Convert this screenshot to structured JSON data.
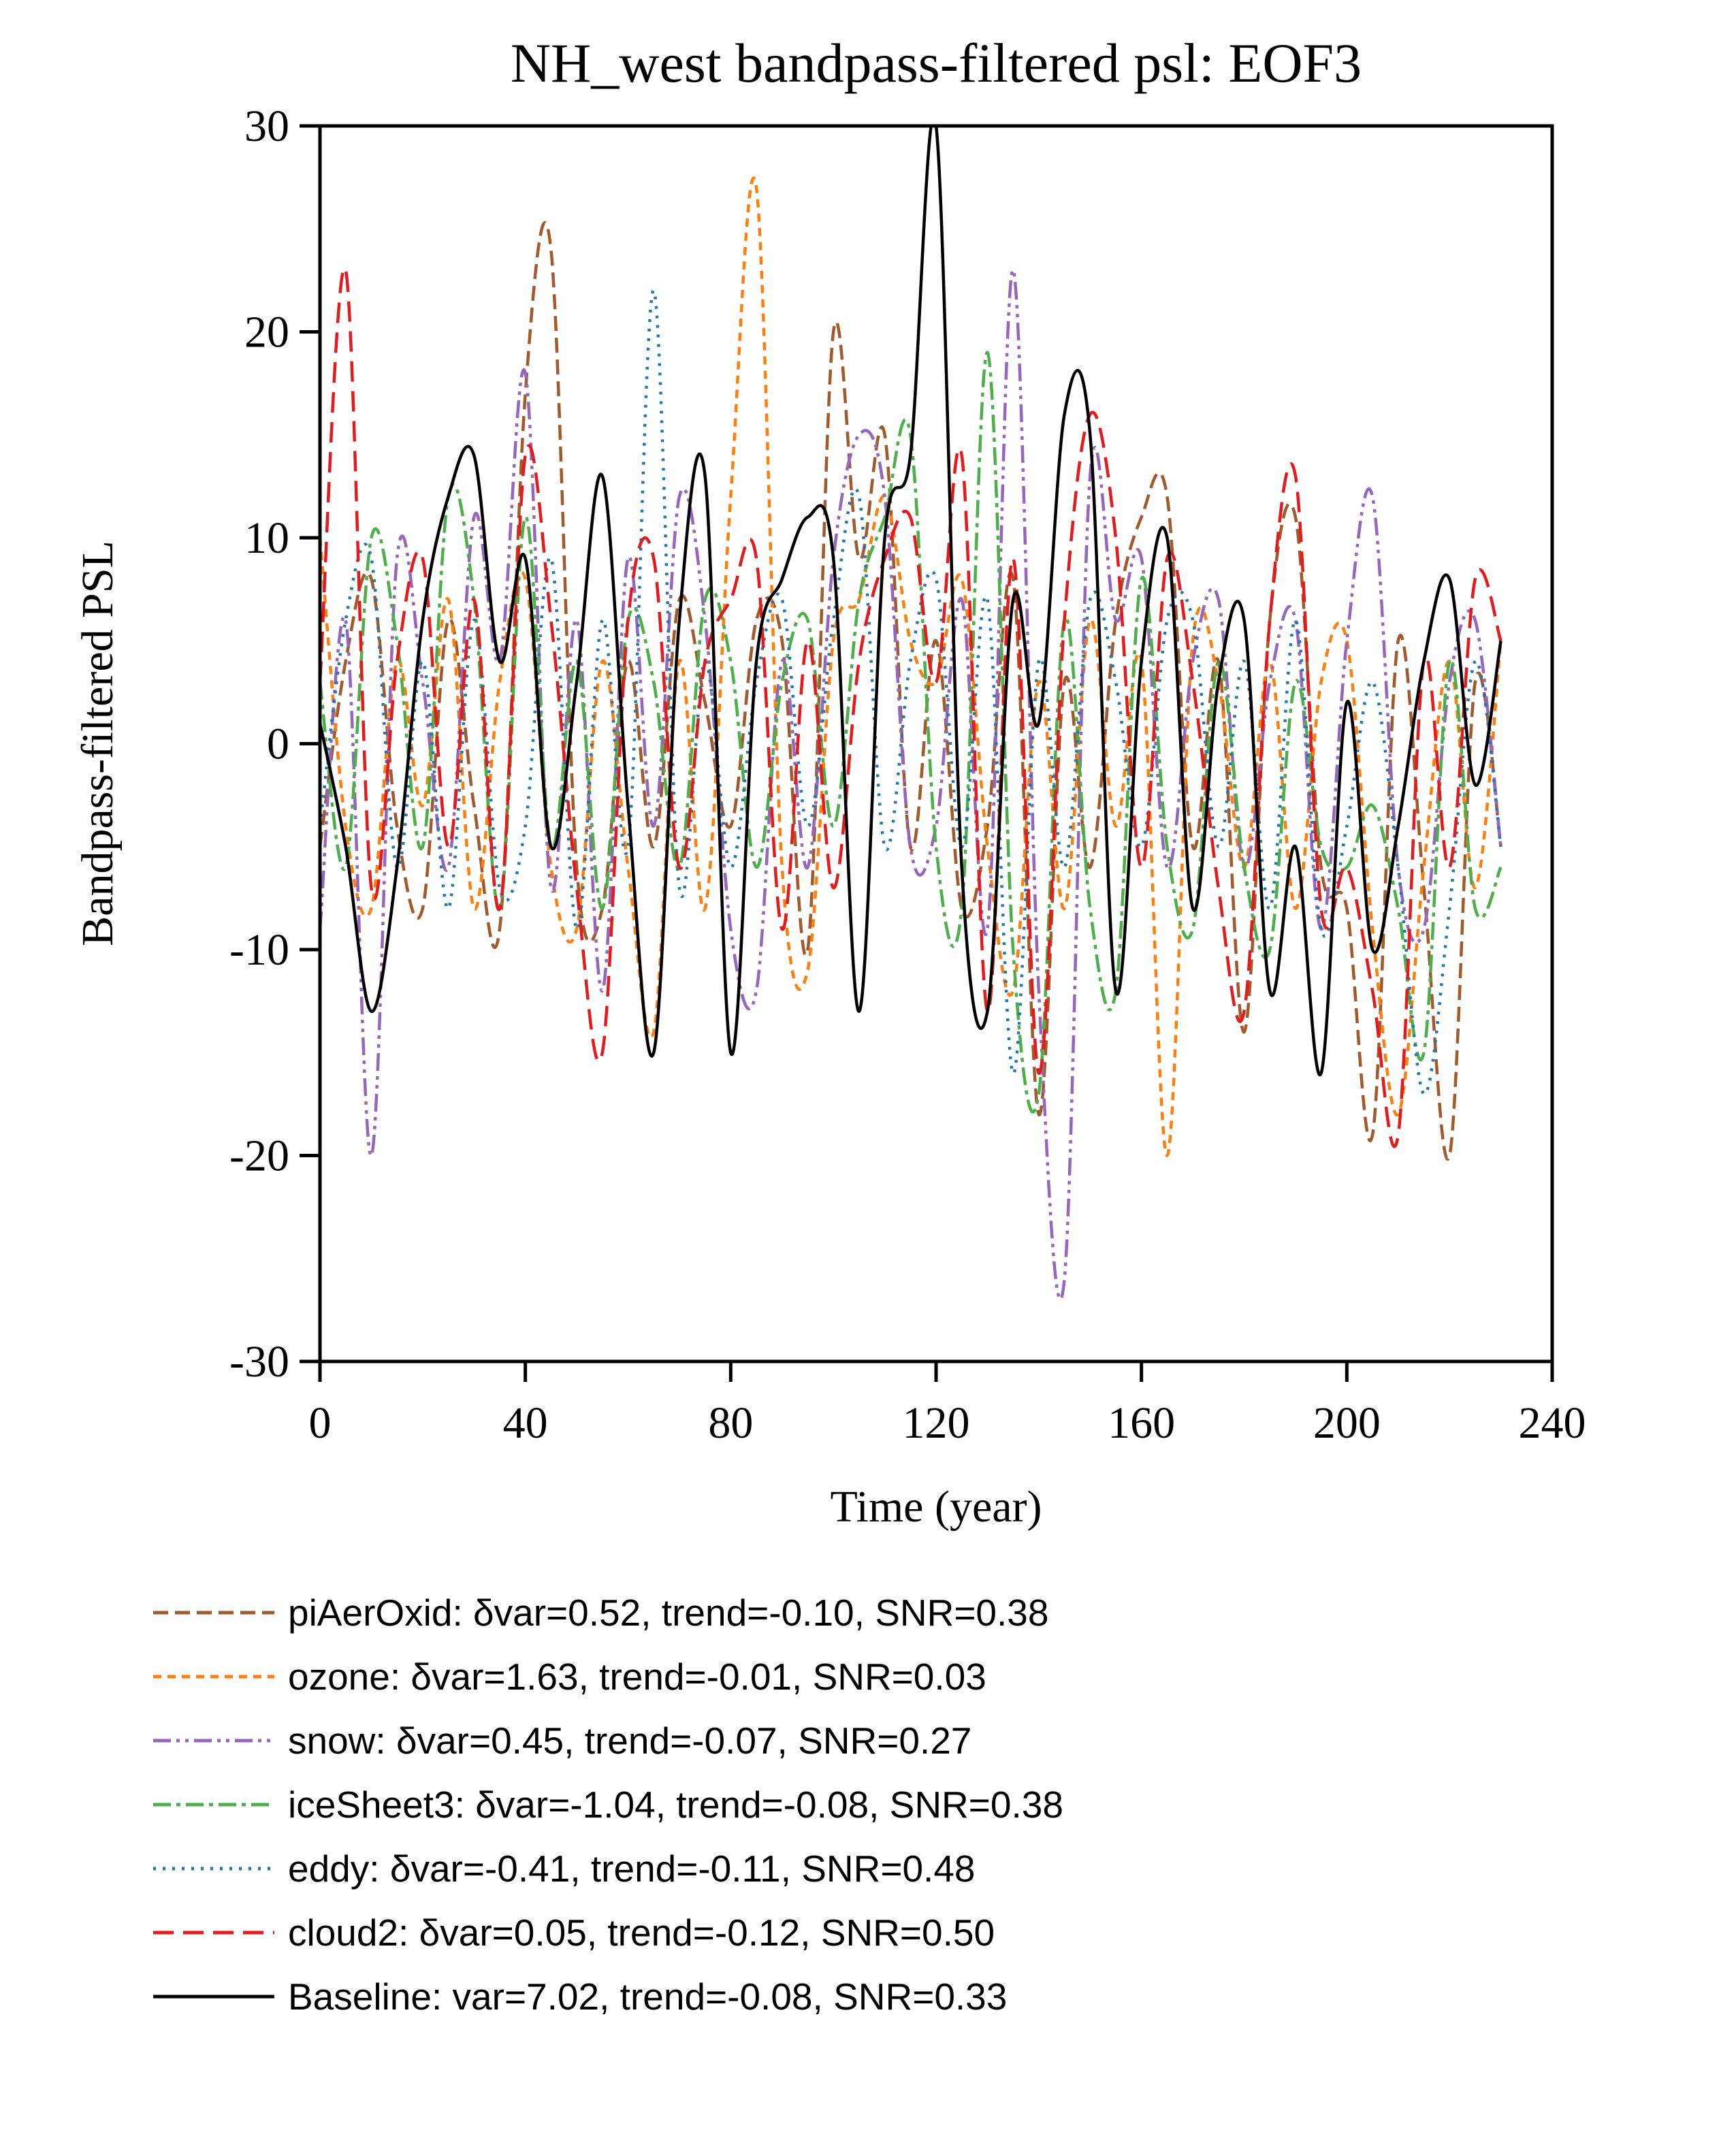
{
  "figure": {
    "title": "NH_west bandpass-filtered psl: EOF3"
  },
  "chart_data": {
    "type": "line",
    "title": "NH_west bandpass-filtered psl: EOF3",
    "xlabel": "Time (year)",
    "ylabel": "Bandpass-filtered PSL",
    "xlim": [
      0,
      240
    ],
    "ylim": [
      -30,
      30
    ],
    "xticks": [
      0,
      40,
      80,
      120,
      160,
      200,
      240
    ],
    "yticks": [
      -30,
      -20,
      -10,
      0,
      10,
      20,
      30
    ],
    "grid": false,
    "legend_position": "below-left",
    "x": [
      0,
      5,
      10,
      15,
      20,
      25,
      30,
      35,
      40,
      45,
      50,
      55,
      60,
      65,
      70,
      75,
      80,
      85,
      90,
      95,
      100,
      105,
      110,
      115,
      120,
      125,
      130,
      135,
      140,
      145,
      150,
      155,
      160,
      165,
      170,
      175,
      180,
      185,
      190,
      195,
      200,
      205,
      210,
      215,
      220,
      225,
      230
    ],
    "series": [
      {
        "name": "piAerOxid",
        "label": "piAerOxid: δvar=0.52, trend=-0.10, SNR=0.38",
        "color": "#a05a2c",
        "dash": "22 10",
        "values": [
          -5,
          4,
          8,
          -4,
          -8,
          6,
          -3,
          -9,
          17,
          24,
          -6,
          -8,
          4,
          -5,
          7,
          2,
          -4,
          6,
          5,
          -10,
          20,
          9,
          15,
          -5,
          5,
          -8,
          -4,
          8,
          -18,
          3,
          -6,
          6,
          11,
          12,
          -5,
          4,
          -14,
          6,
          11,
          -6,
          -8,
          -19,
          5,
          -7,
          -20,
          3,
          -5
        ]
      },
      {
        "name": "ozone",
        "label": "ozone: δvar=1.63, trend=-0.01, SNR=0.03",
        "color": "#ff7f0e",
        "dash": "12 9",
        "values": [
          10,
          -4,
          -8,
          4,
          -3,
          7,
          -8,
          3,
          8,
          -6,
          -9,
          4,
          -6,
          -14,
          4,
          -8,
          12,
          27,
          -6,
          -11,
          5,
          7,
          12,
          5,
          3,
          8,
          -5,
          -12,
          3,
          -8,
          6,
          -4,
          4,
          -20,
          5,
          3,
          -6,
          4,
          -8,
          3,
          5,
          -9,
          -18,
          -6,
          4,
          -7,
          5
        ]
      },
      {
        "name": "snow",
        "label": "snow: δvar=0.45, trend=-0.07, SNR=0.27",
        "color": "#9467bd",
        "dash": "26 8 5 8 5 8",
        "values": [
          -9,
          6,
          -20,
          9,
          3,
          -6,
          11,
          4,
          18,
          -7,
          6,
          -12,
          9,
          -4,
          12,
          6,
          -9,
          -12,
          4,
          -6,
          9,
          15,
          12,
          -5,
          -4,
          7,
          -9,
          23,
          -12,
          -26,
          13,
          6,
          9,
          -6,
          4,
          7,
          -6,
          3,
          6,
          -9,
          5,
          12,
          -6,
          -9,
          3,
          6,
          -5
        ]
      },
      {
        "name": "iceSheet3",
        "label": "iceSheet3: δvar=-1.04, trend=-0.08, SNR=0.38",
        "color": "#4daf4a",
        "dash": "26 8 6 8",
        "values": [
          3,
          -6,
          10,
          5,
          -5,
          12,
          7,
          -8,
          11,
          -5,
          4,
          -8,
          6,
          3,
          -6,
          7,
          4,
          -6,
          3,
          6,
          -4,
          7,
          11,
          15,
          -5,
          -8,
          19,
          -10,
          -17,
          6,
          -8,
          -12,
          8,
          -5,
          -9,
          4,
          -6,
          -10,
          3,
          -5,
          -6,
          -3,
          -8,
          -15,
          4,
          -8,
          -6
        ]
      },
      {
        "name": "eddy",
        "label": "eddy: δvar=-0.41, trend=-0.11, SNR=0.48",
        "color": "#1f77b4",
        "dash": "4 10",
        "values": [
          -4,
          6,
          9,
          -6,
          4,
          -8,
          6,
          -7,
          -4,
          9,
          -9,
          6,
          -5,
          22,
          -7,
          4,
          -6,
          3,
          7,
          -4,
          6,
          12,
          -5,
          4,
          8,
          -5,
          7,
          -16,
          4,
          -6,
          7,
          3,
          -5,
          6,
          6,
          -5,
          4,
          -8,
          6,
          -9,
          -4,
          3,
          -6,
          -17,
          -8,
          4,
          -5
        ]
      },
      {
        "name": "cloud2",
        "label": "cloud2: δvar=0.05, trend=-0.12, SNR=0.50",
        "color": "#e41a1c",
        "dash": "30 14",
        "values": [
          3,
          23,
          -7,
          4,
          9,
          -5,
          7,
          -8,
          14,
          6,
          -7,
          -15,
          6,
          9,
          -6,
          4,
          7,
          9,
          -9,
          5,
          -7,
          4,
          9,
          11,
          3,
          14,
          -13,
          9,
          -16,
          6,
          16,
          10,
          -6,
          9,
          3,
          -7,
          -13,
          6,
          13,
          -8,
          -6,
          -12,
          -19,
          4,
          -6,
          8,
          5
        ]
      },
      {
        "name": "Baseline",
        "label": "Baseline: var=7.02, trend=-0.08, SNR=0.33",
        "color": "#000000",
        "dash": "",
        "values": [
          1,
          -5,
          -13,
          -6,
          6,
          12,
          14,
          4,
          9,
          -5,
          3,
          13,
          -3,
          -15,
          6,
          13,
          -15,
          4,
          8,
          11,
          9,
          -13,
          10,
          14,
          30,
          -6,
          -13,
          7,
          1,
          16,
          15,
          -12,
          4,
          10,
          -8,
          3,
          6,
          -12,
          -5,
          -16,
          2,
          -10,
          -4,
          4,
          8,
          -2,
          5
        ]
      }
    ]
  }
}
